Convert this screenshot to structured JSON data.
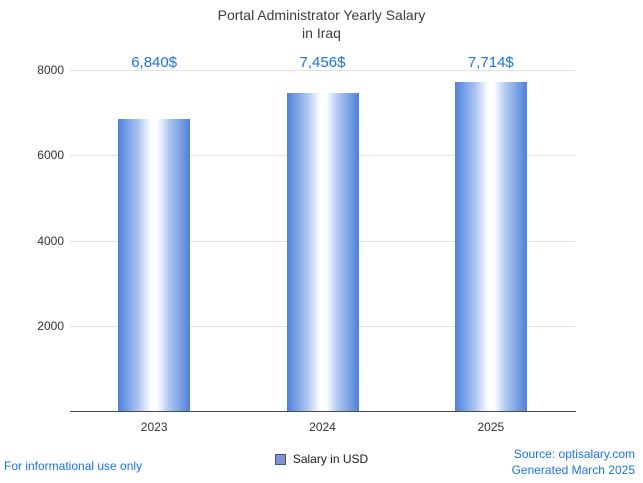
{
  "title": {
    "line1": "Portal Administrator Yearly Salary",
    "line2": "in Iraq"
  },
  "chart_data": {
    "type": "bar",
    "title": "Portal Administrator Yearly Salary in Iraq",
    "categories": [
      "2023",
      "2024",
      "2025"
    ],
    "values": [
      6840,
      7456,
      7714
    ],
    "value_labels": [
      "6,840$",
      "7,456$",
      "7,714$"
    ],
    "series": [
      {
        "name": "Salary in USD",
        "values": [
          6840,
          7456,
          7714
        ]
      }
    ],
    "xlabel": "",
    "ylabel": "",
    "ylim": [
      0,
      8000
    ],
    "yticks": [
      2000,
      4000,
      6000,
      8000
    ],
    "grid": true,
    "legend_position": "bottom"
  },
  "legend": {
    "label": "Salary in USD"
  },
  "footer": {
    "left": "For informational use only",
    "source": "Source: optisalary.com",
    "generated": "Generated March 2025"
  },
  "colors": {
    "accent_text": "#1a73e8",
    "bar_edge": "#4f80d9",
    "bar_mid": "#ffffff",
    "legend_swatch": "#8193ce",
    "gridline": "#e3e3e3",
    "title_text": "#3c3c3c"
  }
}
